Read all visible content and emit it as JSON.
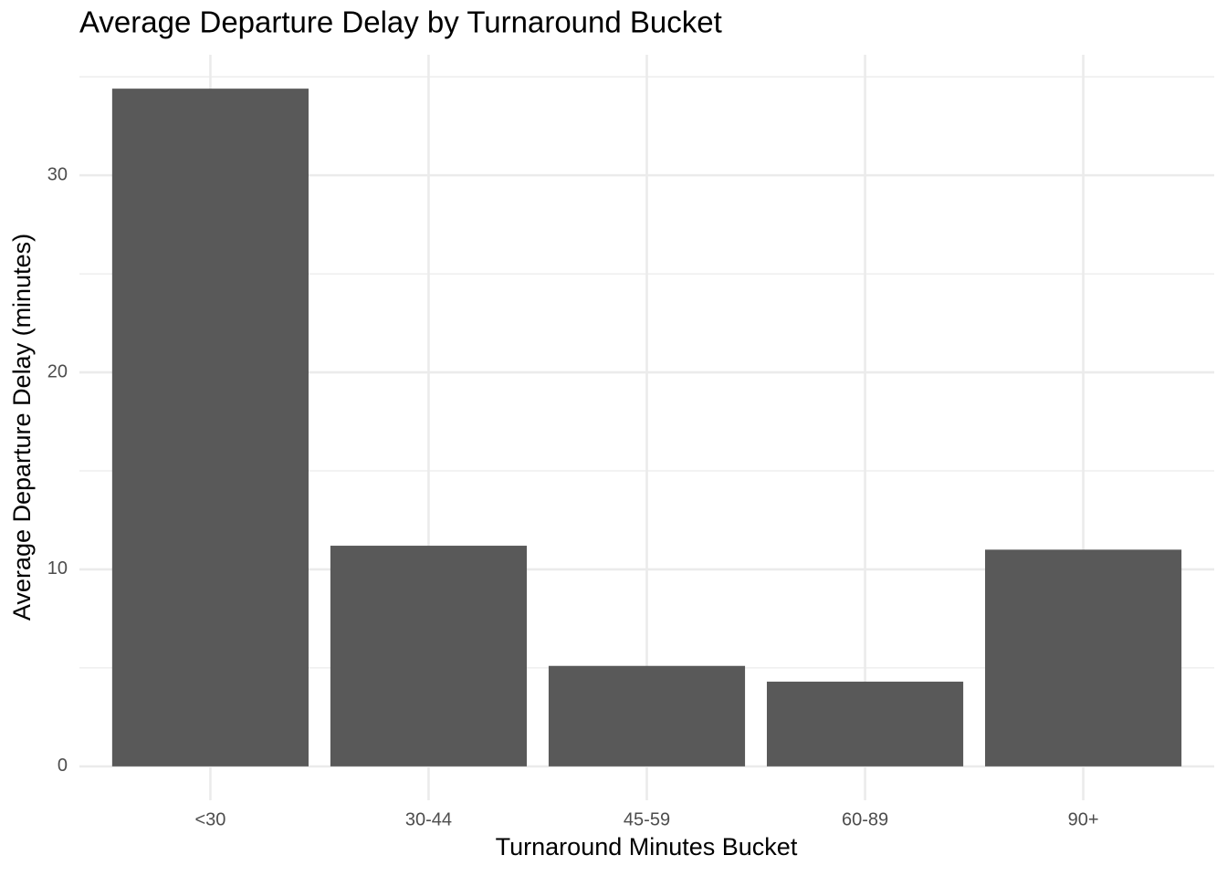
{
  "chart_data": {
    "type": "bar",
    "title": "Average Departure Delay by Turnaround Bucket",
    "x_label": "Turnaround Minutes Bucket",
    "y_label": "Average Departure Delay (minutes)",
    "categories": [
      "<30",
      "30-44",
      "45-59",
      "60-89",
      "90+"
    ],
    "values": [
      34.4,
      11.2,
      5.1,
      4.3,
      11.0
    ],
    "color": "#595959",
    "ylim": [
      -1.72,
      36.12
    ],
    "yticks": [
      0,
      10,
      20,
      30
    ],
    "minor_yticks": [
      5,
      15,
      25,
      35
    ],
    "grid": true
  }
}
